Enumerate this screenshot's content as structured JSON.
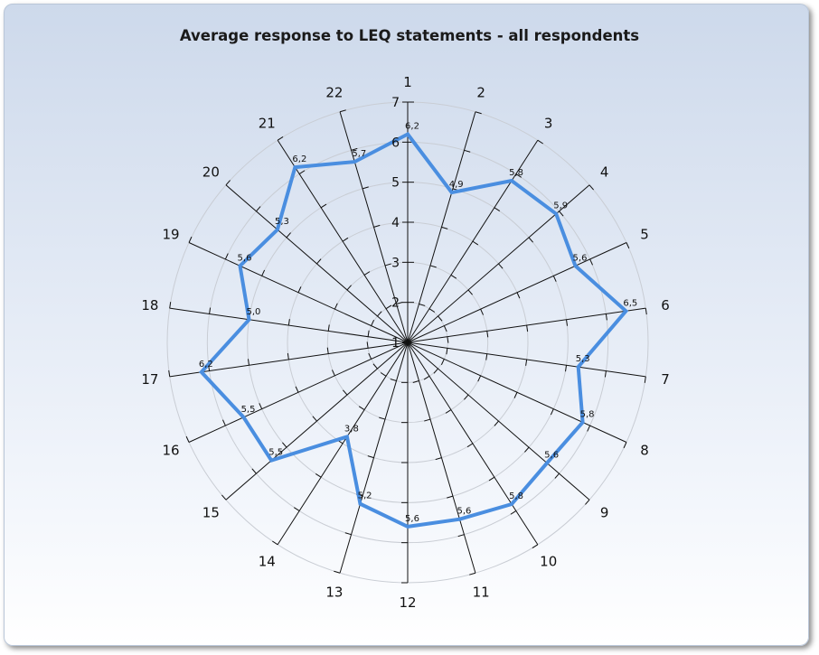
{
  "chart_data": {
    "type": "radar",
    "title": "Average response to LEQ statements - all respondents",
    "categories": [
      "1",
      "2",
      "3",
      "4",
      "5",
      "6",
      "7",
      "8",
      "9",
      "10",
      "11",
      "12",
      "13",
      "14",
      "15",
      "16",
      "17",
      "18",
      "19",
      "20",
      "21",
      "22"
    ],
    "series": [
      {
        "values": [
          6.2,
          4.9,
          5.8,
          5.9,
          5.6,
          6.5,
          5.3,
          5.8,
          5.6,
          5.8,
          5.6,
          5.6,
          5.2,
          3.8,
          5.5,
          5.5,
          6.2,
          5.0,
          5.6,
          5.3,
          6.2,
          5.7
        ],
        "value_labels": [
          "6,2",
          "4,9",
          "5,8",
          "5,9",
          "5,6",
          "6,5",
          "5,3",
          "5,8",
          "5,6",
          "5,8",
          "5,6",
          "5,6",
          "5,2",
          "3,8",
          "5,5",
          "5,5",
          "6,2",
          "5,0",
          "5,6",
          "5,3",
          "6,2",
          "5,7"
        ],
        "color": "#4a8ee0"
      }
    ],
    "rlim": [
      1,
      7
    ],
    "ticks": [
      1,
      2,
      3,
      4,
      5,
      6,
      7
    ],
    "grid": true,
    "legend": "none"
  }
}
